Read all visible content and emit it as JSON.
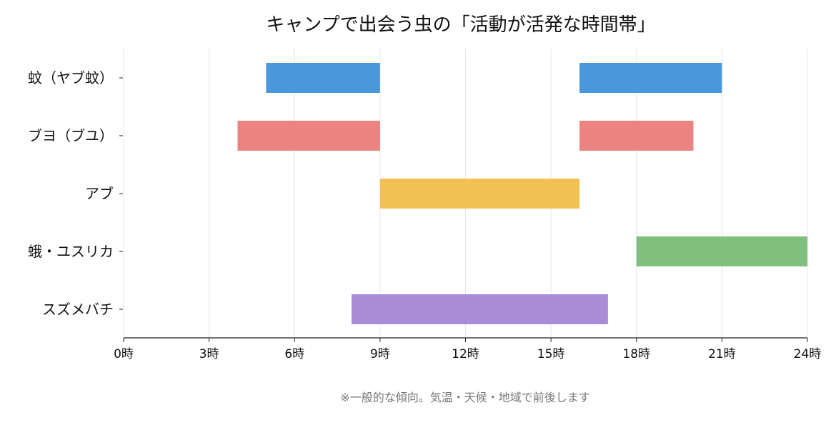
{
  "chart_data": {
    "type": "bar",
    "orientation": "horizontal-range",
    "title": "キャンプで出会う虫の「活動が活発な時間帯」",
    "xlabel": "",
    "ylabel": "",
    "xlim": [
      0,
      24
    ],
    "x_ticks": [
      0,
      3,
      6,
      9,
      12,
      15,
      18,
      21,
      24
    ],
    "x_tick_labels": [
      "0時",
      "3時",
      "6時",
      "9時",
      "12時",
      "15時",
      "18時",
      "21時",
      "24時"
    ],
    "grid": "vertical",
    "legend": "none",
    "categories": [
      "蚊（ヤブ蚊）",
      "ブヨ（ブユ）",
      "アブ",
      "蛾・ユスリカ",
      "スズメバチ"
    ],
    "ranges": [
      {
        "category": "蚊（ヤブ蚊）",
        "color": "#4a98db",
        "intervals": [
          [
            5,
            9
          ],
          [
            16,
            21
          ]
        ]
      },
      {
        "category": "ブヨ（ブユ）",
        "color": "#eb8480",
        "intervals": [
          [
            4,
            9
          ],
          [
            16,
            20
          ]
        ]
      },
      {
        "category": "アブ",
        "color": "#f2c153",
        "intervals": [
          [
            9,
            16
          ]
        ]
      },
      {
        "category": "蛾・ユスリカ",
        "color": "#80c07e",
        "intervals": [
          [
            18,
            24
          ]
        ]
      },
      {
        "category": "スズメバチ",
        "color": "#a98cd6",
        "intervals": [
          [
            8,
            17
          ]
        ]
      }
    ]
  },
  "footnote": "※一般的な傾向。気温・天候・地域で前後します",
  "colors": {
    "text": "#111111",
    "axis": "#222222",
    "grid": "#e6e6e6",
    "footnote": "#777777"
  }
}
